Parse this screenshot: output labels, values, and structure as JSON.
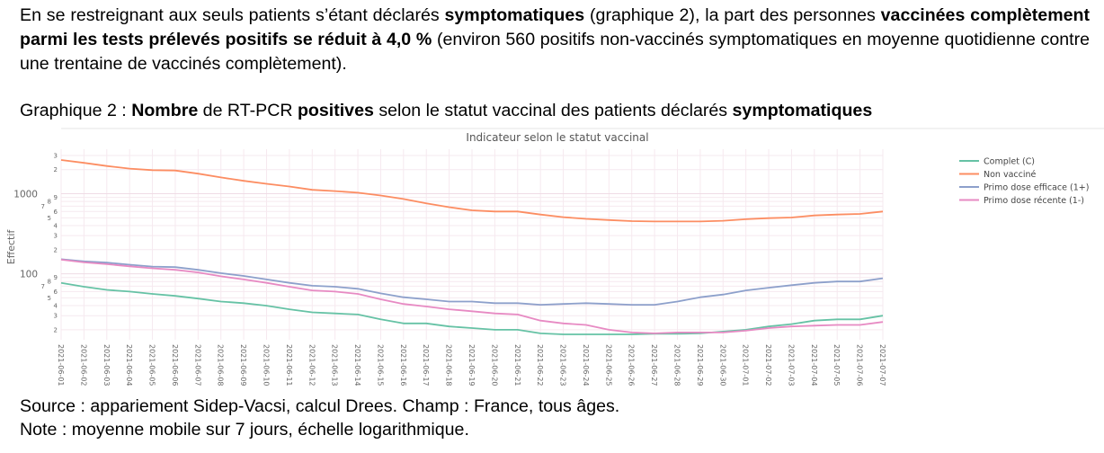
{
  "paragraph": {
    "s1": "En se restreignant aux seuls patients s’étant déclarés ",
    "s2": "symptomatiques",
    "s3": " (graphique 2), la part des personnes ",
    "s4": "vaccinées complètement parmi les tests prélevés positifs se réduit à 4,0 %",
    "s5": " (environ 560 positifs non-vaccinés symptomatiques en moyenne quotidienne contre une trentaine de vaccinés complètement)."
  },
  "caption": {
    "c1": "Graphique 2 : ",
    "c2": "Nombre",
    "c3": " de RT-PCR ",
    "c4": "positives",
    "c5": " selon le statut vaccinal des patients déclarés ",
    "c6": "symptomatiques"
  },
  "source": "Source : appariement Sidep-Vacsi, calcul Drees. Champ : France, tous âges.",
  "note": "Note : moyenne mobile sur 7 jours, échelle logarithmique.",
  "chart_data": {
    "type": "line",
    "title": "Indicateur selon le statut vaccinal",
    "xlabel": "",
    "ylabel": "Effectif",
    "yscale": "log",
    "ylim": [
      15,
      3600
    ],
    "grid": true,
    "legend": "right",
    "y_major_ticks": [
      "1000",
      "100"
    ],
    "y_minor_ticks": [
      {
        "value": 3000,
        "label": "3"
      },
      {
        "value": 2000,
        "label": "2"
      },
      {
        "value": 900,
        "label": "9"
      },
      {
        "value": 800,
        "label": "8"
      },
      {
        "value": 700,
        "label": "7"
      },
      {
        "value": 600,
        "label": "6"
      },
      {
        "value": 500,
        "label": "5"
      },
      {
        "value": 400,
        "label": "4"
      },
      {
        "value": 300,
        "label": "3"
      },
      {
        "value": 200,
        "label": "2"
      },
      {
        "value": 90,
        "label": "9"
      },
      {
        "value": 80,
        "label": "8"
      },
      {
        "value": 70,
        "label": "7"
      },
      {
        "value": 60,
        "label": "6"
      },
      {
        "value": 50,
        "label": "5"
      },
      {
        "value": 40,
        "label": "4"
      },
      {
        "value": 30,
        "label": "3"
      },
      {
        "value": 20,
        "label": "2"
      }
    ],
    "x": [
      "2021-06-01",
      "2021-06-02",
      "2021-06-03",
      "2021-06-04",
      "2021-06-05",
      "2021-06-06",
      "2021-06-07",
      "2021-06-08",
      "2021-06-09",
      "2021-06-10",
      "2021-06-11",
      "2021-06-12",
      "2021-06-13",
      "2021-06-14",
      "2021-06-15",
      "2021-06-16",
      "2021-06-17",
      "2021-06-18",
      "2021-06-19",
      "2021-06-20",
      "2021-06-21",
      "2021-06-22",
      "2021-06-23",
      "2021-06-24",
      "2021-06-25",
      "2021-06-26",
      "2021-06-27",
      "2021-06-28",
      "2021-06-29",
      "2021-06-30",
      "2021-07-01",
      "2021-07-02",
      "2021-07-03",
      "2021-07-04",
      "2021-07-05",
      "2021-07-06",
      "2021-07-07"
    ],
    "series": [
      {
        "name": "Complet (C)",
        "color": "#66c2a5",
        "values": [
          77,
          69,
          63,
          60,
          56,
          53,
          49,
          45,
          43,
          40,
          36,
          33,
          32,
          31,
          27,
          24,
          24,
          22,
          21,
          20,
          20,
          18,
          17.5,
          17.5,
          17.5,
          17.5,
          17.8,
          17.8,
          18,
          19,
          20,
          22,
          23.5,
          26,
          27,
          27,
          30
        ]
      },
      {
        "name": "Non vacciné",
        "color": "#fc8d62",
        "values": [
          2640,
          2430,
          2220,
          2060,
          1970,
          1950,
          1780,
          1600,
          1450,
          1330,
          1230,
          1120,
          1080,
          1030,
          950,
          860,
          760,
          680,
          620,
          600,
          600,
          550,
          510,
          485,
          470,
          455,
          450,
          450,
          450,
          460,
          480,
          495,
          505,
          535,
          550,
          560,
          600
        ]
      },
      {
        "name": "Primo dose efficace (1+)",
        "color": "#8da0cb",
        "values": [
          152,
          143,
          138,
          130,
          123,
          121,
          112,
          102,
          94,
          85,
          77,
          71,
          69,
          65,
          57,
          51,
          48,
          45,
          45,
          43,
          43,
          41,
          42,
          43,
          42,
          41,
          41,
          45,
          51,
          55,
          62,
          67,
          72,
          77,
          80,
          80,
          88
        ]
      },
      {
        "name": "Primo dose récente (1-)",
        "color": "#e78ac3",
        "values": [
          150,
          139,
          132,
          124,
          117,
          112,
          104,
          93,
          85,
          77,
          69,
          62,
          60,
          56,
          48,
          42,
          39,
          36,
          34,
          32,
          31,
          26,
          24,
          23,
          20,
          18.5,
          18,
          18.5,
          18.5,
          18.5,
          19.5,
          21,
          22,
          22.5,
          23,
          23,
          25
        ]
      }
    ]
  }
}
